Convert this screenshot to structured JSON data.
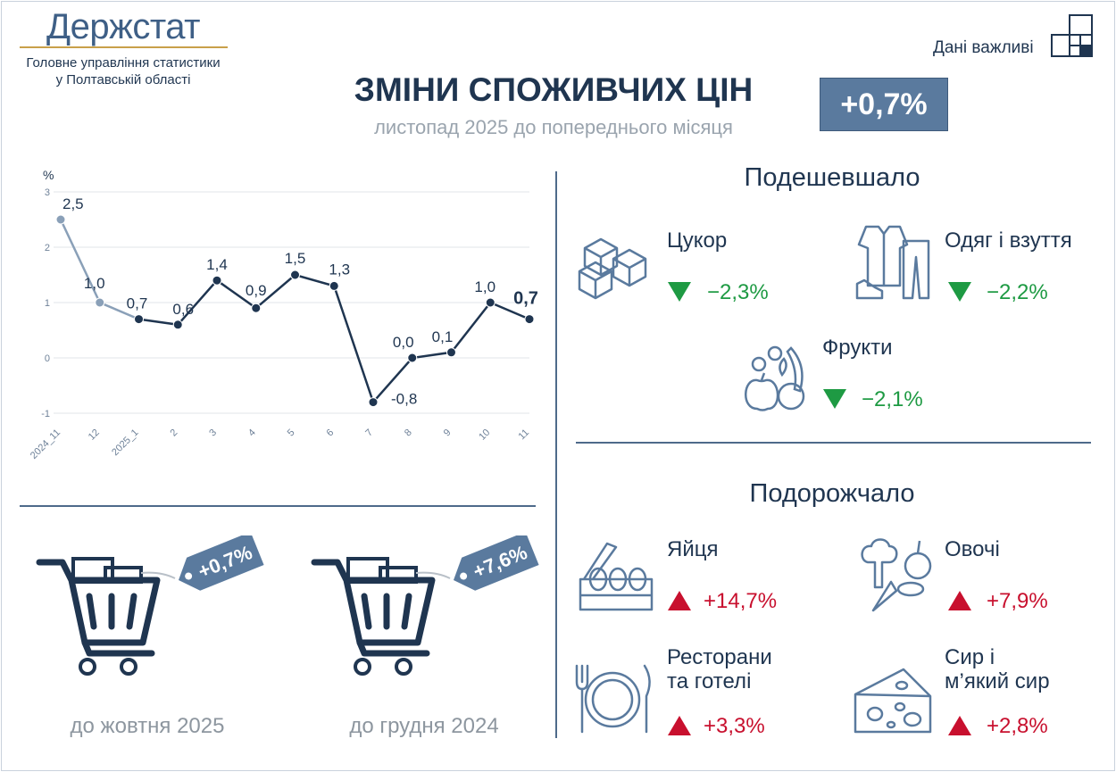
{
  "header": {
    "logo": "Держстат",
    "org_line1": "Головне управління статистики",
    "org_line2": "у Полтавській області",
    "important": "Дані важливі"
  },
  "title": "ЗМІНИ СПОЖИВЧИХ ЦІН",
  "subtitle": "листопад 2025 до попереднього місяця",
  "headline_value": "+0,7%",
  "chart_data": {
    "type": "line",
    "ylabel": "%",
    "ylim": [
      -1,
      3
    ],
    "yticks": [
      "-1",
      "0",
      "1",
      "2",
      "3"
    ],
    "categories": [
      "2024_11",
      "12",
      "2025_1",
      "2",
      "3",
      "4",
      "5",
      "6",
      "7",
      "8",
      "9",
      "10",
      "11"
    ],
    "values": [
      2.5,
      1.0,
      0.7,
      0.6,
      1.4,
      0.9,
      1.5,
      1.3,
      -0.8,
      0.0,
      0.1,
      1.0,
      0.7
    ],
    "labels": [
      "2,5",
      "1,0",
      "0,7",
      "0,6",
      "1,4",
      "0,9",
      "1,5",
      "1,3",
      "-0,8",
      "0,0",
      "0,1",
      "1,0",
      "0,7"
    ],
    "grid": true,
    "colors": {
      "early": "#8aa0b8",
      "main": "#1f3550"
    }
  },
  "carts": [
    {
      "tag": "+0,7%",
      "caption": "до жовтня 2025"
    },
    {
      "tag": "+7,6%",
      "caption": "до грудня 2024"
    }
  ],
  "cheaper": {
    "heading": "Подешевшало",
    "items": [
      {
        "label": "Цукор",
        "value": "−2,3%",
        "icon": "sugar-cubes-icon"
      },
      {
        "label": "Одяг і взуття",
        "value": "−2,2%",
        "icon": "clothes-icon"
      },
      {
        "label": "Фрукти",
        "value": "−2,1%",
        "icon": "fruits-icon"
      }
    ]
  },
  "pricier": {
    "heading": "Подорожчало",
    "items": [
      {
        "label": "Яйця",
        "value": "+14,7%",
        "icon": "eggs-icon"
      },
      {
        "label": "Овочі",
        "value": "+7,9%",
        "icon": "vegetables-icon"
      },
      {
        "label1": "Ресторани",
        "label2": "та готелі",
        "value": "+3,3%",
        "icon": "restaurant-icon"
      },
      {
        "label1": "Сир і",
        "label2": "м’який сир",
        "value": "+2,8%",
        "icon": "cheese-icon"
      }
    ]
  },
  "colors": {
    "accent": "#5a7a9e",
    "navy": "#1f3550",
    "green": "#1e9a43",
    "red": "#c8102e"
  }
}
